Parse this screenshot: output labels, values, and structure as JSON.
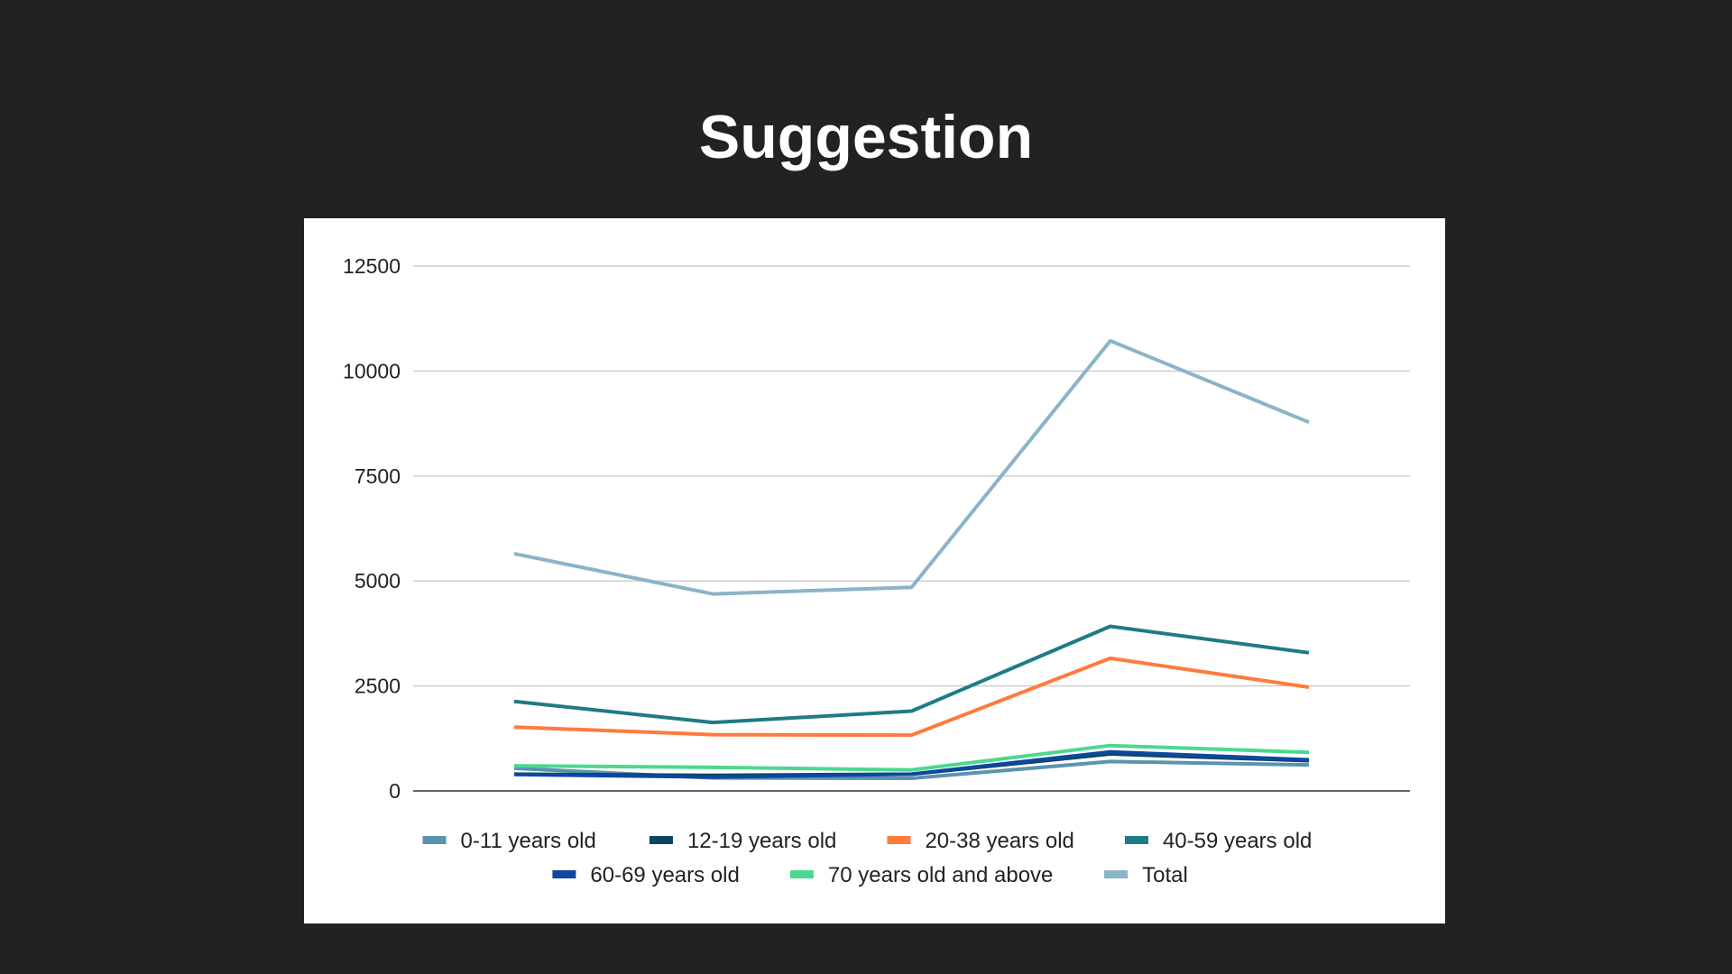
{
  "slide": {
    "title": "Suggestion"
  },
  "chart_data": {
    "type": "line",
    "title": "",
    "xlabel": "",
    "ylabel": "",
    "categories": [
      "",
      "",
      "",
      "",
      ""
    ],
    "ylim": [
      0,
      12500
    ],
    "yticks": [
      "0",
      "2500",
      "5000",
      "7500",
      "10000",
      "12500"
    ],
    "grid": true,
    "legend_position": "bottom",
    "series": [
      {
        "name": "0-11 years old",
        "color": "#5b93ae",
        "values": [
          540,
          310,
          300,
          700,
          620
        ]
      },
      {
        "name": "12-19 years old",
        "color": "#0c4660",
        "values": [
          400,
          370,
          400,
          880,
          720
        ]
      },
      {
        "name": "20-38 years old",
        "color": "#ff7a3d",
        "values": [
          1520,
          1340,
          1330,
          3160,
          2470
        ]
      },
      {
        "name": "40-59 years old",
        "color": "#1e7b86",
        "values": [
          2130,
          1630,
          1900,
          3920,
          3290
        ]
      },
      {
        "name": "60-69 years old",
        "color": "#0d47a1",
        "values": [
          390,
          330,
          400,
          930,
          740
        ]
      },
      {
        "name": "70 years old and above",
        "color": "#4cd88e",
        "values": [
          600,
          560,
          500,
          1080,
          920
        ]
      },
      {
        "name": "Total",
        "color": "#8ab4c8",
        "values": [
          5650,
          4690,
          4850,
          10720,
          8780
        ]
      }
    ]
  }
}
